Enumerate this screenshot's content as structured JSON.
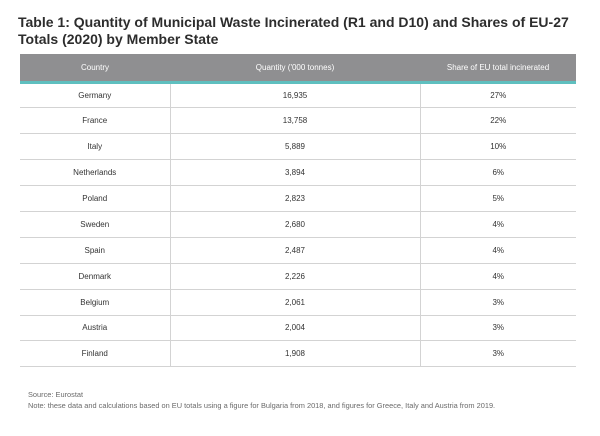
{
  "title": "Table 1: Quantity of Municipal Waste Incinerated (R1 and D10) and Shares of EU-27 Totals (2020) by Member State",
  "table": {
    "columns": [
      "Country",
      "Quantity ('000 tonnes)",
      "Share of EU total incinerated"
    ],
    "rows": [
      [
        "Germany",
        "16,935",
        "27%"
      ],
      [
        "France",
        "13,758",
        "22%"
      ],
      [
        "Italy",
        "5,889",
        "10%"
      ],
      [
        "Netherlands",
        "3,894",
        "6%"
      ],
      [
        "Poland",
        "2,823",
        "5%"
      ],
      [
        "Sweden",
        "2,680",
        "4%"
      ],
      [
        "Spain",
        "2,487",
        "4%"
      ],
      [
        "Denmark",
        "2,226",
        "4%"
      ],
      [
        "Belgium",
        "2,061",
        "3%"
      ],
      [
        "Austria",
        "2,004",
        "3%"
      ],
      [
        "Finland",
        "1,908",
        "3%"
      ]
    ]
  },
  "source": "Source: Eurostat",
  "note": "Note: these data and calculations based on EU totals using a figure for Bulgaria from 2018, and figures for Greece, Italy and Austria from 2019."
}
